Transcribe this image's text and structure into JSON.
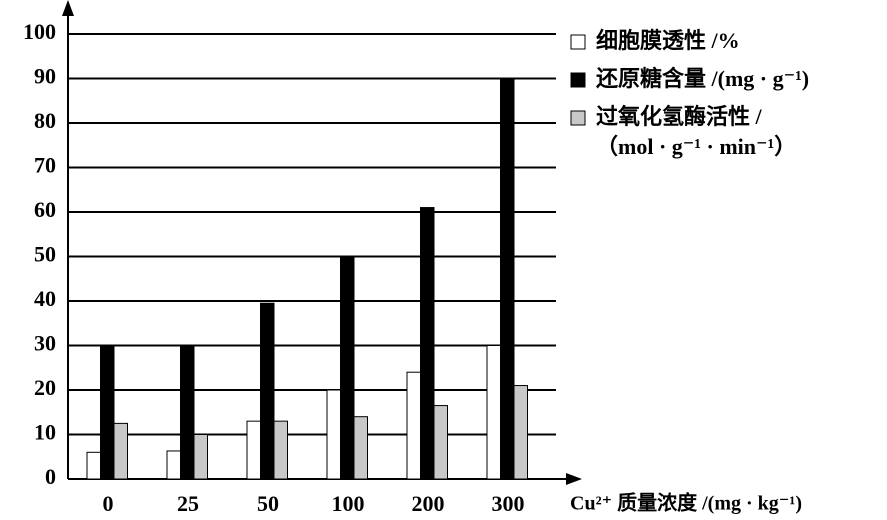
{
  "chart_data": {
    "type": "bar",
    "categories": [
      "0",
      "25",
      "50",
      "100",
      "200",
      "300"
    ],
    "series": [
      {
        "name": "细胞膜透性 /%",
        "color": "#ffffff",
        "values": [
          6,
          6.3,
          13,
          20,
          24,
          30
        ]
      },
      {
        "name": "还原糖含量 /(mg · g⁻¹)",
        "color": "#000000",
        "values": [
          30,
          30,
          39.5,
          50,
          61,
          90
        ]
      },
      {
        "name": "过氧化氢酶活性 /\n（mol · g⁻¹ · min⁻¹）",
        "color": "#c8c8c8",
        "values": [
          12.5,
          10,
          13,
          14,
          16.5,
          21
        ]
      }
    ],
    "x_label": "Cu²⁺ 质量浓度 /(mg · kg⁻¹)",
    "ylim": [
      0,
      100
    ],
    "yticks": [
      0,
      10,
      20,
      30,
      40,
      50,
      60,
      70,
      80,
      90,
      100
    ],
    "grid": true
  }
}
